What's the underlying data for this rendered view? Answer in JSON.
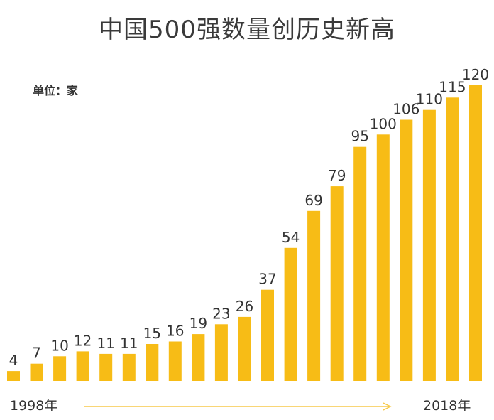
{
  "title": "中国500强数量创历史新高",
  "unit_label": "单位：家",
  "start_year_label": "1998年",
  "end_year_label": "2018年",
  "colors": {
    "bar": "#F7BC16",
    "value_text": "#333333",
    "arrow": "#F7C948"
  },
  "chart_data": {
    "type": "bar",
    "title": "中国500强数量创历史新高",
    "unit": "单位：家",
    "categories": [
      "1998年",
      "",
      "",
      "",
      "",
      "",
      "",
      "",
      "",
      "",
      "",
      "",
      "",
      "",
      "",
      "",
      "",
      "",
      "",
      "",
      "2018年"
    ],
    "values": [
      4,
      7,
      10,
      12,
      11,
      11,
      15,
      16,
      19,
      23,
      26,
      37,
      54,
      69,
      79,
      95,
      100,
      106,
      110,
      115,
      120
    ],
    "xlabel": "",
    "ylabel": "",
    "ylim": [
      0,
      120
    ],
    "grid": false,
    "legend": "none",
    "data_labels": true
  }
}
